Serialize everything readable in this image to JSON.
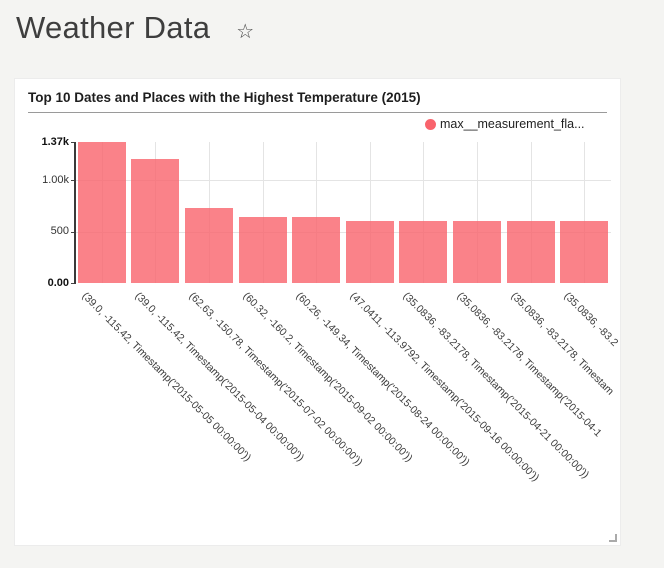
{
  "header": {
    "title": "Weather Data",
    "favorite_icon": "☆"
  },
  "chart_data": {
    "type": "bar",
    "title": "Top 10 Dates and Places with the Highest Temperature (2015)",
    "legend": {
      "position": "top-right",
      "items": [
        {
          "label": "max__measurement_fla...",
          "color": "#f9636c"
        }
      ]
    },
    "bar_color": "#f9636c",
    "categories": [
      "(39.0, -115.42, Timestamp('2015-05-05 00:00:00'))",
      "(39.0, -115.42, Timestamp('2015-05-04 00:00:00'))",
      "(62.63, -150.78, Timestamp('2015-07-02 00:00:00'))",
      "(60.32, -160.2, Timestamp('2015-09-02 00:00:00'))",
      "(60.26, -149.34, Timestamp('2015-08-24 00:00:00'))",
      "(47.0411, -113.9792, Timestamp('2015-09-16 00:00:00'))",
      "(35.0836, -83.2178, Timestamp('2015-04-21 00:00:00'))",
      "(35.0836, -83.2178, Timestamp('2015-04-1",
      "(35.0836, -83.2178, Timestam",
      "(35.0836, -83.2"
    ],
    "values": [
      1370,
      1205,
      730,
      645,
      640,
      602,
      598,
      598,
      600,
      598
    ],
    "xlabel": "",
    "ylabel": "",
    "ylim": [
      0,
      1370
    ],
    "yticks": [
      {
        "label": "1.37k",
        "value": 1370,
        "bold": true,
        "grid": false
      },
      {
        "label": "1.00k",
        "value": 1000,
        "bold": false,
        "grid": true
      },
      {
        "label": "500",
        "value": 500,
        "bold": false,
        "grid": true
      },
      {
        "label": "0.00",
        "value": 0,
        "bold": true,
        "grid": false
      }
    ],
    "grid": true,
    "x_tick_rotation": 45
  }
}
